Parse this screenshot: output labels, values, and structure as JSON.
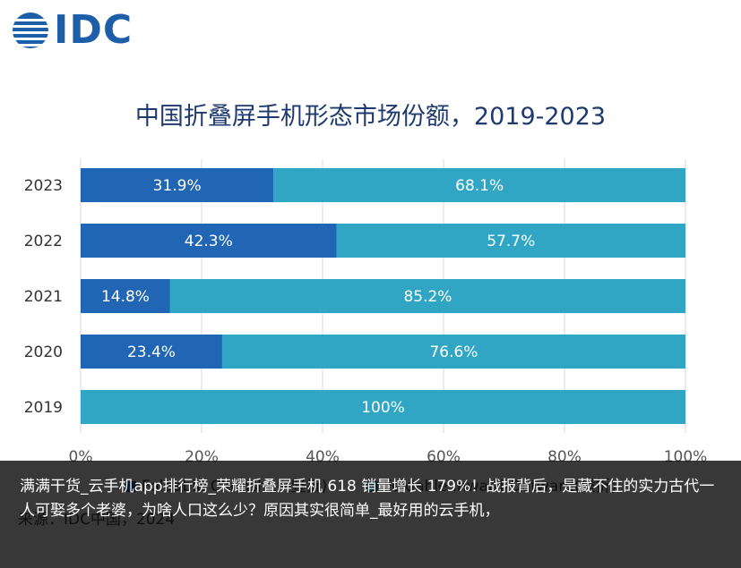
{
  "logo": {
    "text": "IDC"
  },
  "chart_data": {
    "type": "bar",
    "orientation": "horizontal",
    "stacked": true,
    "title": "中国折叠屏手机形态市场份额，2019-2023",
    "categories": [
      "2023",
      "2022",
      "2021",
      "2020",
      "2019"
    ],
    "series": [
      {
        "name": "Foldable Clamshell(竖折)",
        "values": [
          31.9,
          42.3,
          14.8,
          23.4,
          0
        ],
        "color": "#2166b4"
      },
      {
        "name": "Foldable Inward/Outward(横折)",
        "values": [
          68.1,
          57.7,
          85.2,
          76.6,
          100
        ],
        "color": "#31a6c4"
      }
    ],
    "data_labels": [
      [
        "31.9%",
        "42.3%",
        "14.8%",
        "23.4%",
        ""
      ],
      [
        "68.1%",
        "57.7%",
        "85.2%",
        "76.6%",
        "100%"
      ]
    ],
    "xlim": [
      0,
      100
    ],
    "xticks": [
      "0%",
      "20%",
      "40%",
      "60%",
      "80%",
      "100%"
    ],
    "grid": true,
    "legend_position": "bottom",
    "source": "来源：IDC中国，2024"
  },
  "overlay": {
    "text": "满满干货_云手机app排行榜_荣耀折叠屏手机 618 销量增长 179%！战报背后，是藏不住的实力古代一人可娶多个老婆，为啥人口这么少？原因其实很简单_最好用的云手机，"
  }
}
